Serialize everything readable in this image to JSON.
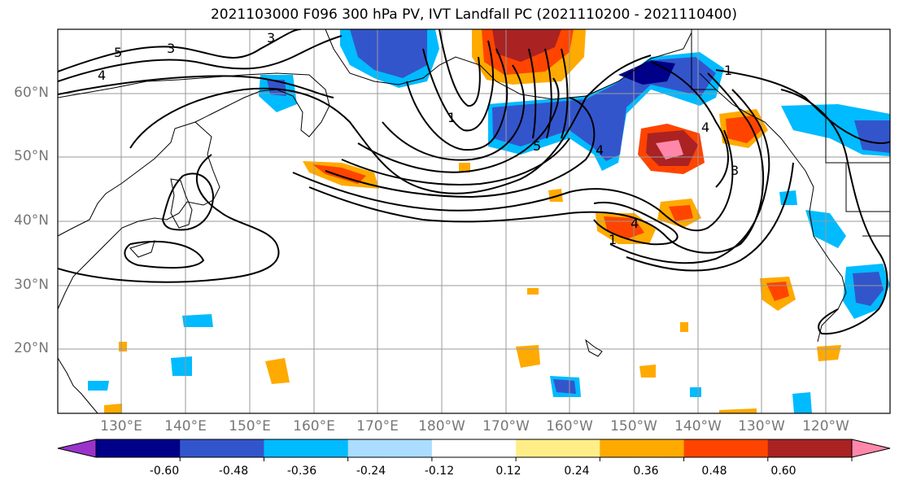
{
  "title": "2021103000 F096 300 hPa PV, IVT Landfall PC (2021110200 - 2021110400)",
  "lat_labels": [
    "60°N",
    "50°N",
    "40°N",
    "30°N",
    "20°N"
  ],
  "lon_labels": [
    "130°E",
    "140°E",
    "150°E",
    "160°E",
    "170°E",
    "180°W",
    "170°W",
    "160°W",
    "150°W",
    "140°W",
    "130°W",
    "120°W"
  ],
  "colorbar": {
    "colors": [
      "#9933cc",
      "#000088",
      "#3355cc",
      "#00bbff",
      "#aaddff",
      "#ffffff",
      "#ffee88",
      "#ffaa00",
      "#ff4400",
      "#aa2222",
      "#ff88aa"
    ],
    "tick_labels": [
      "-0.60",
      "-0.48",
      "-0.36",
      "-0.24",
      "-0.12",
      "0.12",
      "0.24",
      "0.36",
      "0.48",
      "0.60"
    ]
  },
  "contour_labels": [
    "5",
    "4",
    "3",
    "3",
    "1",
    "1",
    "1",
    "4",
    "3",
    "4",
    "5",
    "4"
  ]
}
